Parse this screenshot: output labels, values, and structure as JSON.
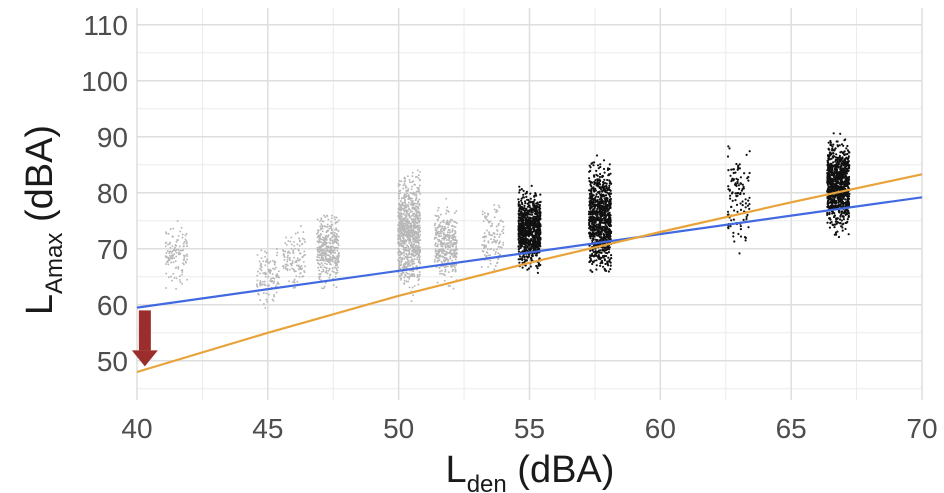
{
  "chart_data": {
    "type": "scatter",
    "xlabel": {
      "main": "L",
      "sub": "den",
      "unit": " (dBA)"
    },
    "ylabel": {
      "main": "L",
      "sub": "Amax",
      "unit": " (dBA)"
    },
    "xlim": [
      40,
      70
    ],
    "ylim": [
      43,
      113
    ],
    "x_ticks": [
      "40",
      "45",
      "50",
      "55",
      "60",
      "65",
      "70"
    ],
    "y_ticks": [
      "50",
      "60",
      "70",
      "80",
      "90",
      "100",
      "110"
    ],
    "grid": true,
    "point_clusters": [
      {
        "x": 41.5,
        "ymin": 62,
        "ymax": 76,
        "density": "low",
        "color": "#b8b8b8"
      },
      {
        "x": 45.0,
        "ymin": 59,
        "ymax": 72,
        "density": "low",
        "color": "#b8b8b8"
      },
      {
        "x": 46.0,
        "ymin": 61,
        "ymax": 75,
        "density": "low",
        "color": "#b8b8b8"
      },
      {
        "x": 47.3,
        "ymin": 62,
        "ymax": 78,
        "density": "medium",
        "color": "#b8b8b8"
      },
      {
        "x": 50.4,
        "ymin": 60,
        "ymax": 86,
        "density": "high",
        "color": "#b8b8b8"
      },
      {
        "x": 51.8,
        "ymin": 62,
        "ymax": 80,
        "density": "medium",
        "color": "#b8b8b8"
      },
      {
        "x": 53.6,
        "ymin": 64,
        "ymax": 80,
        "density": "low",
        "color": "#b8b8b8"
      },
      {
        "x": 55.0,
        "ymin": 65,
        "ymax": 82,
        "density": "high",
        "color": "#111111"
      },
      {
        "x": 57.7,
        "ymin": 63,
        "ymax": 88,
        "density": "high",
        "color": "#111111"
      },
      {
        "x": 63.0,
        "ymin": 66,
        "ymax": 91,
        "density": "low",
        "color": "#111111"
      },
      {
        "x": 66.8,
        "ymin": 71,
        "ymax": 92,
        "density": "high",
        "color": "#111111"
      }
    ],
    "series": [
      {
        "type": "line",
        "color": "#4169e1",
        "x": [
          40,
          70
        ],
        "y": [
          59.5,
          79.2
        ]
      },
      {
        "type": "line",
        "color": "#e8a33a",
        "x": [
          40,
          45,
          50,
          55,
          60,
          65,
          70
        ],
        "y": [
          48,
          55,
          61.6,
          67.5,
          73,
          78.3,
          83.3
        ]
      }
    ],
    "annotation": {
      "type": "arrow",
      "color": "#9b2d2d",
      "x": 40.3,
      "y_from": 59,
      "y_to": 49
    }
  }
}
